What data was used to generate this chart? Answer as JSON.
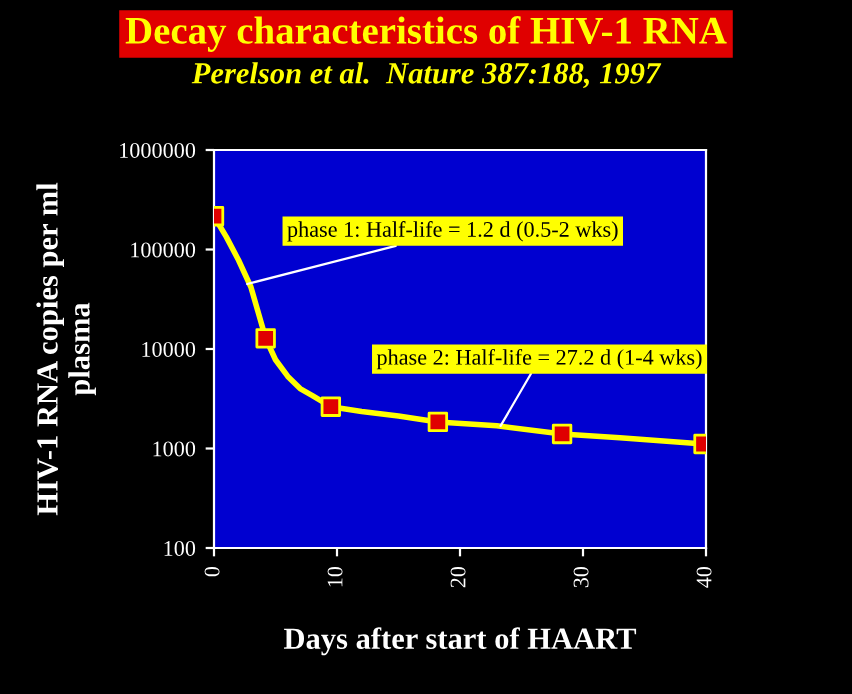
{
  "chart_data": {
    "type": "line",
    "title": "Decay characteristics of HIV-1 RNA",
    "subtitle": "Perelson et al.  Nature 387:188, 1997",
    "xlabel": "Days after start of HAART",
    "ylabel": "HIV-1 RNA copies per ml\nplasma",
    "series": [
      {
        "color": "#ffff00",
        "marker": "none",
        "x": [
          0,
          1,
          2,
          3,
          4.2,
          5,
          6,
          7,
          8,
          9.5,
          12,
          15,
          18.2,
          23,
          28.3,
          33,
          39.8
        ],
        "values": [
          216000,
          134000,
          78000,
          42000,
          12800,
          7800,
          5300,
          4000,
          3400,
          2630,
          2360,
          2120,
          1850,
          1690,
          1400,
          1280,
          1110
        ]
      },
      {
        "type": "scatter",
        "color": "#e00000",
        "marker": "square",
        "x": [
          0,
          4.2,
          9.5,
          18.2,
          28.3,
          39.8
        ],
        "values": [
          216000,
          12800,
          2630,
          1850,
          1400,
          1110
        ]
      }
    ],
    "annotations": [
      {
        "text": "phase 1: Half-life = 1.2 d (0.5-2 wks)",
        "x": 2.7,
        "y": 45000
      },
      {
        "text": "phase 2: Half-life = 27.2 d (1-4 wks)",
        "x": 23.3,
        "y": 1690
      }
    ],
    "log": "y",
    "xlim": [
      0,
      40
    ],
    "xticks": [
      0,
      10,
      20,
      30,
      40
    ],
    "ylim": [
      100,
      1000000
    ],
    "yticks": [
      100,
      1000,
      10000,
      100000,
      1000000
    ],
    "grid": false,
    "legend": false
  }
}
